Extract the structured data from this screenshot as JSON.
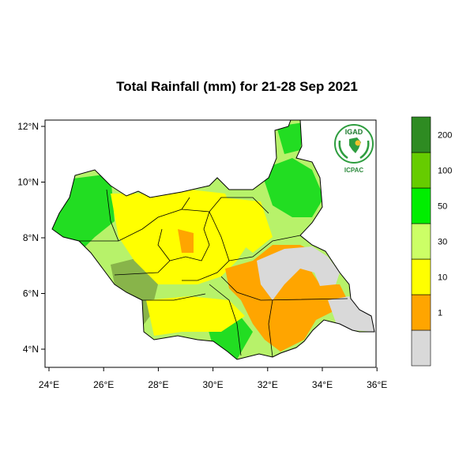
{
  "title": "Total Rainfall (mm) for 21-28 Sep 2021",
  "logo": {
    "top_text": "IGAD",
    "bottom_text": "ICPAC",
    "colors": {
      "ring": "#2e9d3f",
      "text_top": "#1b7a2c",
      "text_bottom": "#2e8b3e",
      "sun": "#f2c12e"
    }
  },
  "axes": {
    "lon_labels": [
      "24°E",
      "26°E",
      "28°E",
      "30°E",
      "32°E",
      "34°E",
      "36°E"
    ],
    "lat_labels": [
      "4°N",
      "6°N",
      "8°N",
      "10°N",
      "12°N"
    ]
  },
  "legend": {
    "labels": [
      "1",
      "10",
      "30",
      "50",
      "100",
      "200"
    ],
    "bins": [
      {
        "color": "#d9d9d9"
      },
      {
        "color": "#ffa500"
      },
      {
        "color": "#ffff00"
      },
      {
        "color": "#ccff66"
      },
      {
        "color": "#00ee00"
      },
      {
        "color": "#66cc00"
      },
      {
        "color": "#2e8b22"
      }
    ]
  },
  "colors": {
    "sea": "#ffffff",
    "border": "#000000",
    "light_green": "#b7f26a",
    "yellow": "#ffff00",
    "orange": "#ffa500",
    "grey": "#d9d9d9",
    "bright_green": "#22dd22",
    "olive": "#88b44a",
    "dark_green": "#1f9e2a"
  }
}
